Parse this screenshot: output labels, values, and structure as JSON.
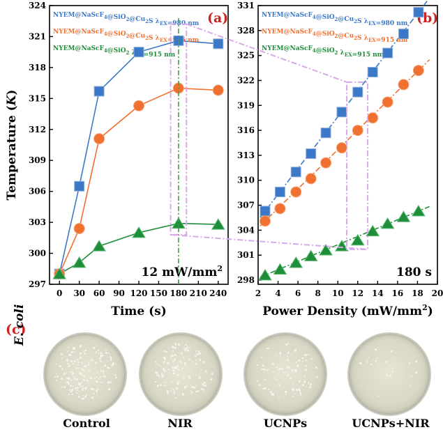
{
  "chart_data": [
    {
      "type": "line",
      "panel": "(a)",
      "xlabel": "Time (s)",
      "ylabel": "Temperature (K)",
      "xlim": [
        -15,
        255
      ],
      "ylim": [
        297,
        324
      ],
      "xticks": [
        0,
        30,
        60,
        90,
        120,
        150,
        180,
        210,
        240
      ],
      "yticks": [
        297,
        300,
        303,
        306,
        309,
        312,
        315,
        318,
        321,
        324
      ],
      "annotation": "12 mW/mm²",
      "x": [
        0,
        30,
        60,
        120,
        180,
        240
      ],
      "series": [
        {
          "name": "NYEM@NaScF4@SiO2@Cu2S λEX=980 nm",
          "color": "#3b78c8",
          "marker": "square",
          "values": [
            298.0,
            306.5,
            315.7,
            319.5,
            320.6,
            320.3
          ]
        },
        {
          "name": "NYEM@NaScF4@SiO2@Cu2S λEX=915 nm",
          "color": "#f07030",
          "marker": "circle",
          "values": [
            298.0,
            302.4,
            311.1,
            314.3,
            316.0,
            315.8
          ]
        },
        {
          "name": "NYEM@NaScF4@SiO2 λEX=915 nm",
          "color": "#1e8e3a",
          "marker": "triangle",
          "values": [
            298.0,
            299.1,
            300.7,
            302.0,
            302.9,
            302.8
          ]
        }
      ]
    },
    {
      "type": "line",
      "panel": "(b)",
      "xlabel": "Power Density (mW/mm²)",
      "ylabel": "",
      "xlim": [
        2,
        20
      ],
      "ylim": [
        297.5,
        331
      ],
      "xticks": [
        2,
        4,
        6,
        8,
        10,
        12,
        14,
        16,
        18,
        20
      ],
      "yticks": [
        298,
        301,
        304,
        307,
        310,
        313,
        316,
        319,
        322,
        325,
        328,
        331
      ],
      "annotation": "180 s",
      "series": [
        {
          "name": "NYEM@NaScF4@SiO2@Cu2S λEX=980 nm",
          "color": "#3b78c8",
          "marker": "square",
          "x": [
            2.7,
            4.2,
            5.8,
            7.3,
            8.8,
            10.4,
            12.0,
            13.5,
            15.0,
            16.6,
            18.1
          ],
          "values": [
            306.3,
            308.6,
            311.0,
            313.2,
            315.7,
            318.2,
            320.6,
            323.0,
            325.3,
            327.6,
            330.2
          ]
        },
        {
          "name": "NYEM@NaScF4@SiO2@Cu2S λEX=915 nm",
          "color": "#f07030",
          "marker": "circle",
          "x": [
            2.7,
            4.2,
            5.8,
            7.3,
            8.8,
            10.4,
            12.0,
            13.5,
            15.0,
            16.6,
            18.1
          ],
          "values": [
            305.1,
            306.6,
            308.6,
            310.2,
            312.1,
            313.9,
            316.0,
            317.5,
            319.4,
            321.5,
            323.2
          ]
        },
        {
          "name": "NYEM@NaScF4@SiO2 λEX=915 nm",
          "color": "#1e8e3a",
          "marker": "triangle",
          "x": [
            2.7,
            4.2,
            5.8,
            7.3,
            8.8,
            10.4,
            12.0,
            13.5,
            15.0,
            16.6,
            18.1
          ],
          "values": [
            298.6,
            299.3,
            300.1,
            300.9,
            301.6,
            302.1,
            302.8,
            303.9,
            304.8,
            305.6,
            306.3
          ]
        }
      ]
    }
  ],
  "legend_labels": {
    "blue": {
      "main": "NYEM@NaScF",
      "sub1": "4",
      "mid": "@SiO",
      "sub2": "2",
      "end": "@Cu",
      "sub3": "2",
      "tail": "S  λ",
      "subex": "EX",
      "val": "=980 nm"
    },
    "orange": {
      "main": "NYEM@NaScF",
      "sub1": "4",
      "mid": "@SiO",
      "sub2": "2",
      "end": "@Cu",
      "sub3": "2",
      "tail": "S  λ",
      "subex": "EX",
      "val": "=915 nm"
    },
    "green": {
      "main": "NYEM@NaScF",
      "sub1": "4",
      "mid": "@SiO",
      "sub2": "2",
      "end": "",
      "sub3": "",
      "tail": "  λ",
      "subex": "EX",
      "val": "=915 nm"
    }
  },
  "panel_c": {
    "label": "(c)",
    "organism": "E. coli",
    "conditions": [
      "Control",
      "NIR",
      "UCNPs",
      "UCNPs+NIR"
    ]
  }
}
